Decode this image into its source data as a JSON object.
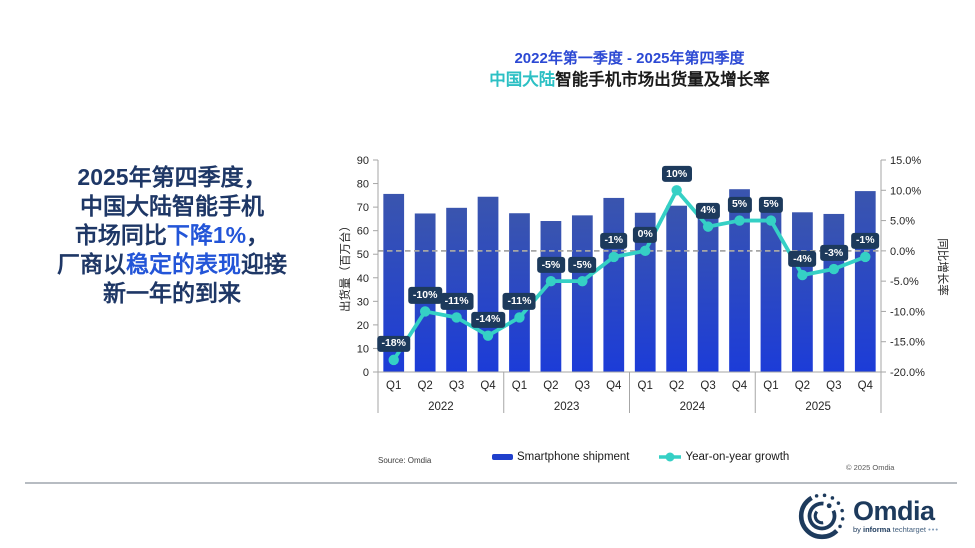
{
  "headline": {
    "lines": [
      {
        "segments": [
          {
            "text": "2025年第四季度，",
            "highlight": false
          }
        ]
      },
      {
        "segments": [
          {
            "text": "中国大陆智能手机",
            "highlight": false
          }
        ]
      },
      {
        "segments": [
          {
            "text": "市场同比",
            "highlight": false
          },
          {
            "text": "下降1%",
            "highlight": true
          },
          {
            "text": "，",
            "highlight": false
          }
        ]
      },
      {
        "segments": [
          {
            "text": "厂商以",
            "highlight": false
          },
          {
            "text": "稳定的表现",
            "highlight": true
          },
          {
            "text": "迎接",
            "highlight": false
          }
        ]
      },
      {
        "segments": [
          {
            "text": "新一年的到来",
            "highlight": false
          }
        ]
      }
    ]
  },
  "chart_title": {
    "line1": "2022年第一季度 - 2025年第四季度",
    "line2_highlight": "中国大陆",
    "line2_rest": "智能手机市场出货量及增长率"
  },
  "chart_data": {
    "type": "bar+line",
    "categories": [
      "2022 Q1",
      "2022 Q2",
      "2022 Q3",
      "2022 Q4",
      "2023 Q1",
      "2023 Q2",
      "2023 Q3",
      "2023 Q4",
      "2024 Q1",
      "2024 Q2",
      "2024 Q3",
      "2024 Q4",
      "2025 Q1",
      "2025 Q2",
      "2025 Q3",
      "2025 Q4"
    ],
    "quarter_labels": [
      "Q1",
      "Q2",
      "Q3",
      "Q4"
    ],
    "year_labels": [
      "2022",
      "2023",
      "2024",
      "2025"
    ],
    "series": [
      {
        "name": "Smartphone shipment",
        "type": "bar",
        "axis": "left",
        "unit": "million units",
        "values": [
          75.6,
          67.3,
          69.7,
          74.4,
          67.4,
          64.1,
          66.5,
          73.9,
          67.6,
          70.6,
          69.2,
          77.6,
          71.0,
          67.8,
          67.1,
          76.8
        ]
      },
      {
        "name": "Year-on-year growth",
        "type": "line",
        "axis": "right",
        "unit": "%",
        "values": [
          -18,
          -10,
          -11,
          -14,
          -11,
          -5,
          -5,
          -1,
          0,
          10,
          4,
          5,
          5,
          -4,
          -3,
          -1
        ],
        "point_labels": [
          "-18%",
          "-10%",
          "-11%",
          "-14%",
          "-11%",
          "-5%",
          "-5%",
          "-1%",
          "0%",
          "10%",
          "4%",
          "5%",
          "5%",
          "-4%",
          "-3%",
          "-1%"
        ]
      }
    ],
    "left_axis": {
      "title": "出货量（百万台）",
      "min": 0,
      "max": 90,
      "step": 10,
      "tick_labels": [
        "90",
        "80",
        "70",
        "60",
        "50",
        "40",
        "30",
        "20",
        "10",
        "0"
      ]
    },
    "right_axis": {
      "title": "同比增长率",
      "min": -20,
      "max": 15,
      "step": 5,
      "tick_labels": [
        "15.0%",
        "10.0%",
        "5.0%",
        "0.0%",
        "-5.0%",
        "-10.0%",
        "-15.0%",
        "-20.0%"
      ]
    },
    "zero_line": {
      "style": "dashed",
      "at": 0
    },
    "legend": [
      {
        "label": "Smartphone shipment",
        "marker": "bar"
      },
      {
        "label": "Year-on-year growth",
        "marker": "line-dot"
      }
    ]
  },
  "footer": {
    "source": "Source: Omdia",
    "copyright": "© 2025 Omdia"
  },
  "logo": {
    "name": "Omdia",
    "tagline_by": "by",
    "tagline_informa": "informa",
    "tagline_techtarget": "techtarget",
    "tagline_dots": "•••"
  },
  "colors": {
    "navy": "#1d3a5c",
    "teal": "#35d0c5",
    "teal_dark": "#2cc0c4",
    "bar_top": "#3a55ae",
    "bar_bottom": "#1c3cd8",
    "bar_legend": "#2040cc",
    "title_blue": "#2c49d4",
    "headline_navy": "#1e3766",
    "headline_blue": "#2355d8",
    "axis_grey": "#a6a6a6",
    "text_dark": "#1a1a1a"
  }
}
